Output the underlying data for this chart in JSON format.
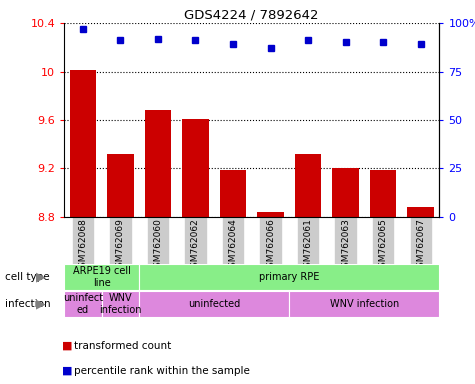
{
  "title": "GDS4224 / 7892642",
  "samples": [
    "GSM762068",
    "GSM762069",
    "GSM762060",
    "GSM762062",
    "GSM762064",
    "GSM762066",
    "GSM762061",
    "GSM762063",
    "GSM762065",
    "GSM762067"
  ],
  "transformed_count": [
    10.01,
    9.32,
    9.68,
    9.61,
    9.19,
    8.84,
    9.32,
    9.2,
    9.19,
    8.88
  ],
  "percentile_rank": [
    97,
    91,
    92,
    91,
    89,
    87,
    91,
    90,
    90,
    89
  ],
  "ylim": [
    8.8,
    10.4
  ],
  "yticks": [
    8.8,
    9.2,
    9.6,
    10.0,
    10.4
  ],
  "right_yticks": [
    0,
    25,
    50,
    75,
    100
  ],
  "bar_color": "#cc0000",
  "dot_color": "#0000cc",
  "cell_type_groups": [
    {
      "text": "ARPE19 cell\nline",
      "start": 0,
      "end": 2,
      "color": "#88ee88"
    },
    {
      "text": "primary RPE",
      "start": 2,
      "end": 10,
      "color": "#88ee88"
    }
  ],
  "infection_groups": [
    {
      "text": "uninfect\ned",
      "start": 0,
      "end": 1,
      "color": "#dd88dd"
    },
    {
      "text": "WNV\ninfection",
      "start": 1,
      "end": 2,
      "color": "#dd88dd"
    },
    {
      "text": "uninfected",
      "start": 2,
      "end": 6,
      "color": "#dd88dd"
    },
    {
      "text": "WNV infection",
      "start": 6,
      "end": 10,
      "color": "#dd88dd"
    }
  ],
  "legend_items": [
    {
      "color": "#cc0000",
      "label": "transformed count"
    },
    {
      "color": "#0000cc",
      "label": "percentile rank within the sample"
    }
  ]
}
